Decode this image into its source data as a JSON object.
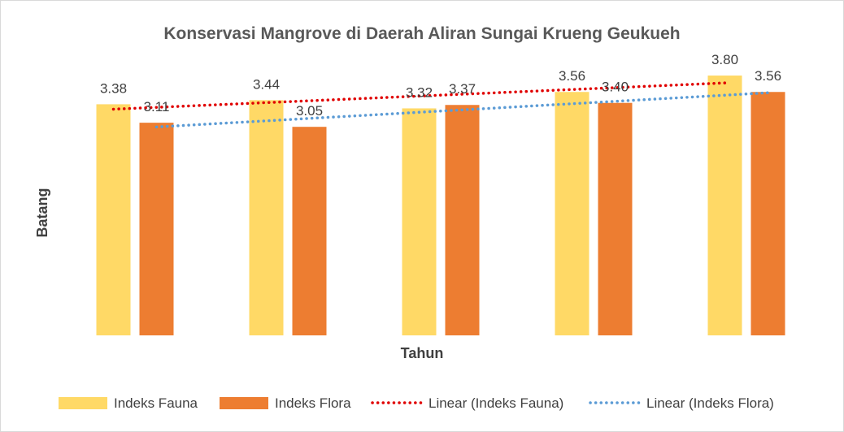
{
  "chart_data": {
    "type": "bar",
    "title": "Konservasi Mangrove di Daerah Aliran Sungai Krueng Geukueh",
    "xlabel": "Tahun",
    "ylabel": "Batang",
    "ylim": [
      0,
      4
    ],
    "categories": [
      "",
      "",
      "",
      "",
      ""
    ],
    "series": [
      {
        "name": "Indeks Fauna",
        "values": [
          3.38,
          3.44,
          3.32,
          3.56,
          3.8
        ],
        "color": "#FFD966"
      },
      {
        "name": "Indeks Flora",
        "values": [
          3.11,
          3.05,
          3.37,
          3.4,
          3.56
        ],
        "color": "#ED7D31"
      }
    ],
    "trendlines": [
      {
        "name": "Linear (Indeks Fauna)",
        "series": "Indeks Fauna",
        "color": "#E00000"
      },
      {
        "name": "Linear (Indeks Flora)",
        "series": "Indeks Flora",
        "color": "#5B9BD5"
      }
    ],
    "labels": {
      "fauna": [
        "3.38",
        "3.44",
        "3.32",
        "3.56",
        "3.80"
      ],
      "flora": [
        "3.11",
        "3.05",
        "3.37",
        "3.40",
        "3.56"
      ]
    },
    "legend_position": "bottom"
  }
}
